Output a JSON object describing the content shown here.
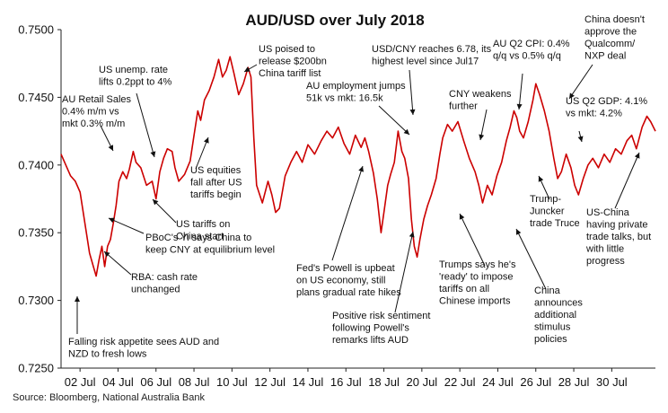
{
  "chart_data": {
    "type": "line",
    "title": "AUD/USD over July 2018",
    "xlabel": "",
    "ylabel": "",
    "ylim": [
      0.725,
      0.75
    ],
    "xlim": [
      1.0,
      32.3
    ],
    "grid": false,
    "legend": "none",
    "line_color": "#cc0000",
    "y_ticks": [
      0.725,
      0.73,
      0.735,
      0.74,
      0.745,
      0.75
    ],
    "y_tick_labels": [
      "0.7250",
      "0.7300",
      "0.7350",
      "0.7400",
      "0.7450",
      "0.7500"
    ],
    "x_ticks": [
      2,
      4,
      6,
      8,
      10,
      12,
      14,
      16,
      18,
      20,
      22,
      24,
      26,
      28,
      30
    ],
    "x_tick_labels": [
      "02 Jul",
      "04 Jul",
      "06 Jul",
      "08 Jul",
      "10 Jul",
      "12 Jul",
      "14 Jul",
      "16 Jul",
      "18 Jul",
      "20 Jul",
      "22 Jul",
      "24 Jul",
      "26 Jul",
      "28 Jul",
      "30 Jul"
    ],
    "series": [
      {
        "values": [
          [
            1.0,
            0.7408
          ],
          [
            1.25,
            0.74
          ],
          [
            1.5,
            0.7392
          ],
          [
            1.75,
            0.7388
          ],
          [
            2.0,
            0.738
          ],
          [
            2.2,
            0.7362
          ],
          [
            2.5,
            0.7335
          ],
          [
            2.7,
            0.7325
          ],
          [
            2.85,
            0.7318
          ],
          [
            3.0,
            0.733
          ],
          [
            3.15,
            0.734
          ],
          [
            3.3,
            0.7325
          ],
          [
            3.45,
            0.734
          ],
          [
            3.6,
            0.7345
          ],
          [
            3.75,
            0.7357
          ],
          [
            3.9,
            0.737
          ],
          [
            4.05,
            0.7388
          ],
          [
            4.25,
            0.7395
          ],
          [
            4.45,
            0.739
          ],
          [
            4.6,
            0.7397
          ],
          [
            4.8,
            0.741
          ],
          [
            4.95,
            0.7402
          ],
          [
            5.2,
            0.7398
          ],
          [
            5.5,
            0.7385
          ],
          [
            5.8,
            0.7388
          ],
          [
            6.0,
            0.7375
          ],
          [
            6.2,
            0.7395
          ],
          [
            6.4,
            0.7405
          ],
          [
            6.6,
            0.7412
          ],
          [
            6.85,
            0.741
          ],
          [
            7.0,
            0.7398
          ],
          [
            7.2,
            0.7388
          ],
          [
            7.5,
            0.7393
          ],
          [
            7.8,
            0.7403
          ],
          [
            8.0,
            0.7422
          ],
          [
            8.2,
            0.744
          ],
          [
            8.35,
            0.7433
          ],
          [
            8.55,
            0.7448
          ],
          [
            8.8,
            0.7455
          ],
          [
            9.05,
            0.7465
          ],
          [
            9.3,
            0.7478
          ],
          [
            9.5,
            0.7465
          ],
          [
            9.7,
            0.747
          ],
          [
            9.9,
            0.748
          ],
          [
            10.1,
            0.7468
          ],
          [
            10.35,
            0.7452
          ],
          [
            10.6,
            0.746
          ],
          [
            10.85,
            0.7472
          ],
          [
            11.0,
            0.7465
          ],
          [
            11.15,
            0.742
          ],
          [
            11.3,
            0.7385
          ],
          [
            11.6,
            0.7372
          ],
          [
            11.9,
            0.7388
          ],
          [
            12.1,
            0.7378
          ],
          [
            12.3,
            0.7365
          ],
          [
            12.5,
            0.7368
          ],
          [
            12.8,
            0.7392
          ],
          [
            13.1,
            0.7402
          ],
          [
            13.4,
            0.741
          ],
          [
            13.7,
            0.7402
          ],
          [
            14.0,
            0.7415
          ],
          [
            14.35,
            0.7408
          ],
          [
            14.7,
            0.7418
          ],
          [
            15.0,
            0.7425
          ],
          [
            15.3,
            0.742
          ],
          [
            15.6,
            0.7428
          ],
          [
            15.9,
            0.7416
          ],
          [
            16.2,
            0.7408
          ],
          [
            16.5,
            0.7422
          ],
          [
            16.8,
            0.7413
          ],
          [
            17.0,
            0.742
          ],
          [
            17.2,
            0.741
          ],
          [
            17.45,
            0.7394
          ],
          [
            17.65,
            0.7375
          ],
          [
            17.85,
            0.735
          ],
          [
            18.0,
            0.7365
          ],
          [
            18.2,
            0.7385
          ],
          [
            18.35,
            0.7393
          ],
          [
            18.55,
            0.7402
          ],
          [
            18.75,
            0.7425
          ],
          [
            18.95,
            0.741
          ],
          [
            19.1,
            0.7405
          ],
          [
            19.3,
            0.739
          ],
          [
            19.45,
            0.736
          ],
          [
            19.6,
            0.734
          ],
          [
            19.75,
            0.7332
          ],
          [
            19.9,
            0.7345
          ],
          [
            20.1,
            0.736
          ],
          [
            20.3,
            0.737
          ],
          [
            20.5,
            0.7378
          ],
          [
            20.75,
            0.739
          ],
          [
            20.95,
            0.7408
          ],
          [
            21.1,
            0.742
          ],
          [
            21.35,
            0.743
          ],
          [
            21.6,
            0.7425
          ],
          [
            21.9,
            0.7432
          ],
          [
            22.2,
            0.7418
          ],
          [
            22.5,
            0.7405
          ],
          [
            22.8,
            0.7395
          ],
          [
            23.0,
            0.7385
          ],
          [
            23.2,
            0.7372
          ],
          [
            23.45,
            0.7385
          ],
          [
            23.7,
            0.7378
          ],
          [
            23.95,
            0.7392
          ],
          [
            24.2,
            0.7402
          ],
          [
            24.45,
            0.7418
          ],
          [
            24.65,
            0.7428
          ],
          [
            24.85,
            0.744
          ],
          [
            25.0,
            0.7435
          ],
          [
            25.15,
            0.7425
          ],
          [
            25.35,
            0.742
          ],
          [
            25.6,
            0.7432
          ],
          [
            25.85,
            0.7448
          ],
          [
            26.0,
            0.746
          ],
          [
            26.2,
            0.7452
          ],
          [
            26.45,
            0.744
          ],
          [
            26.7,
            0.7425
          ],
          [
            26.95,
            0.7405
          ],
          [
            27.15,
            0.739
          ],
          [
            27.35,
            0.7395
          ],
          [
            27.6,
            0.7408
          ],
          [
            27.85,
            0.7398
          ],
          [
            28.05,
            0.7385
          ],
          [
            28.25,
            0.7378
          ],
          [
            28.5,
            0.739
          ],
          [
            28.75,
            0.74
          ],
          [
            29.0,
            0.7405
          ],
          [
            29.3,
            0.7398
          ],
          [
            29.6,
            0.7408
          ],
          [
            29.9,
            0.7402
          ],
          [
            30.2,
            0.7412
          ],
          [
            30.5,
            0.7408
          ],
          [
            30.8,
            0.7418
          ],
          [
            31.05,
            0.7422
          ],
          [
            31.3,
            0.7412
          ],
          [
            31.6,
            0.7428
          ],
          [
            31.85,
            0.7436
          ],
          [
            32.05,
            0.7432
          ],
          [
            32.3,
            0.7425
          ]
        ]
      }
    ]
  },
  "annotations": [
    {
      "lines": [
        "Falling risk appetite sees AUD and",
        "NZD to fresh lows"
      ]
    },
    {
      "lines": [
        "AU Retail Sales",
        "0.4% m/m vs",
        "mkt 0.3% m/m"
      ]
    },
    {
      "lines": [
        "US unemp. rate",
        "lifts 0.2ppt to 4%"
      ]
    },
    {
      "lines": [
        "RBA: cash rate",
        "unchanged"
      ]
    },
    {
      "lines": [
        "PBoC's Yi says China to",
        "keep CNY at equilibrium level"
      ]
    },
    {
      "lines": [
        "US tariffs on",
        "China start"
      ]
    },
    {
      "lines": [
        "US equities",
        "fall after US",
        "tariffs begin"
      ]
    },
    {
      "lines": [
        "US poised to",
        "release $200bn",
        "China tariff list"
      ]
    },
    {
      "lines": [
        "AU employment jumps",
        "51k vs mkt: 16.5k"
      ]
    },
    {
      "lines": [
        "USD/CNY reaches 6.78, its",
        "highest level since Jul17"
      ]
    },
    {
      "lines": [
        "Fed's Powell is upbeat",
        "on US economy, still",
        "plans gradual rate hikes"
      ]
    },
    {
      "lines": [
        "Positive risk sentiment",
        "following Powell's",
        "remarks lifts AUD"
      ]
    },
    {
      "lines": [
        "CNY weakens",
        "further"
      ]
    },
    {
      "lines": [
        "Trumps says he's",
        "'ready' to impose",
        "tariffs on all",
        "Chinese imports"
      ]
    },
    {
      "lines": [
        "AU Q2 CPI: 0.4%",
        "q/q vs 0.5% q/q"
      ]
    },
    {
      "lines": [
        "China doesn't",
        "approve the",
        "Qualcomm/",
        "NXP deal"
      ]
    },
    {
      "lines": [
        "US Q2 GDP: 4.1%",
        "vs mkt: 4.2%"
      ]
    },
    {
      "lines": [
        "Trump-",
        "Juncker",
        "trade Truce"
      ]
    },
    {
      "lines": [
        "US-China",
        "having private",
        "trade talks, but",
        "with little",
        "progress"
      ]
    },
    {
      "lines": [
        "China",
        "announces",
        "additional",
        "stimulus",
        "policies"
      ]
    }
  ],
  "source": "Source: Bloomberg, National Australia Bank"
}
